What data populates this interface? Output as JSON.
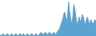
{
  "chart_data": {
    "type": "area",
    "values": [
      3,
      4,
      3,
      5,
      4,
      3,
      4,
      5,
      4,
      3,
      4,
      5,
      4,
      3,
      4,
      5,
      4,
      3,
      4,
      5,
      4,
      3,
      5,
      4,
      3,
      4,
      5,
      4,
      3,
      4,
      5,
      4,
      3,
      4,
      5,
      4,
      3,
      4,
      5,
      6,
      5,
      4,
      5,
      6,
      5,
      4,
      5,
      6,
      5,
      4,
      5,
      6,
      5,
      4,
      6,
      7,
      8,
      10,
      12,
      15,
      18,
      22,
      20,
      14,
      18,
      30,
      22,
      16,
      12,
      18,
      28,
      24,
      16,
      12,
      14,
      18,
      14,
      16,
      20,
      18,
      14,
      12,
      16,
      18,
      14,
      12,
      16,
      14,
      12,
      14,
      16,
      14
    ],
    "color": "#5ba3d0",
    "xlim": [
      0,
      91
    ],
    "ylim": [
      3,
      31.5
    ],
    "xticks": [],
    "yticks": [],
    "tick_labels": false,
    "grid": false
  }
}
